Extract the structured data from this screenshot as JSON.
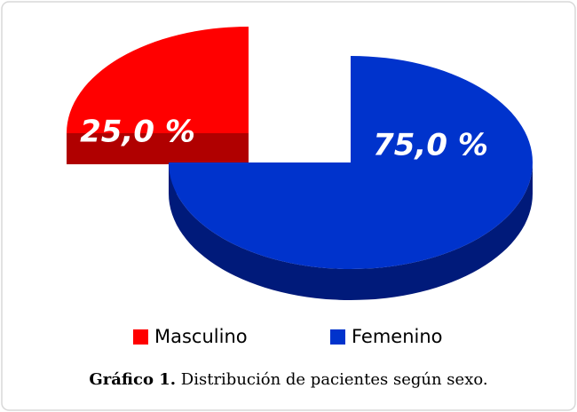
{
  "chart_data": {
    "type": "pie",
    "categories": [
      "Masculino",
      "Femenino"
    ],
    "values": [
      25,
      75
    ],
    "value_labels": [
      "25,0 %",
      "75,0 %"
    ],
    "colors": [
      "#ff0000",
      "#0033cc"
    ],
    "side_colors": [
      "#b00000",
      "#001a7a"
    ],
    "caption_label": "Gráfico 1.",
    "caption": "Distribución de pacientes según sexo."
  }
}
